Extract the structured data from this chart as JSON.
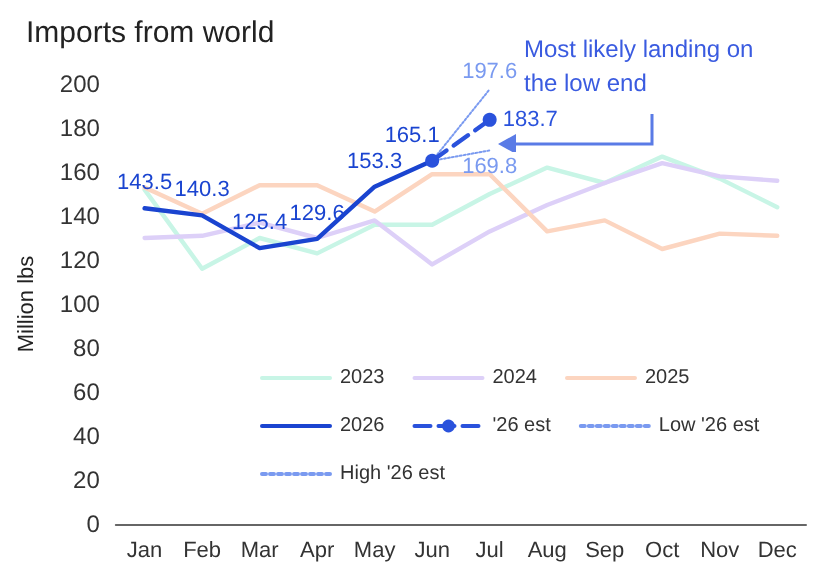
{
  "chart_data": {
    "type": "line",
    "title": "Imports from world",
    "ylabel": "Million lbs",
    "categories": [
      "Jan",
      "Feb",
      "Mar",
      "Apr",
      "May",
      "Jun",
      "Jul",
      "Aug",
      "Sep",
      "Oct",
      "Nov",
      "Dec"
    ],
    "ylim": [
      0,
      200
    ],
    "yticks": [
      0,
      20,
      40,
      60,
      80,
      100,
      120,
      140,
      160,
      180,
      200
    ],
    "grid": false,
    "legend": "bottom",
    "annotations": [
      "Most likely landing on the low end"
    ],
    "series": [
      {
        "name": "2023",
        "color": "#c8f5e6",
        "line_style": "solid",
        "marker": "none",
        "values": [
          152,
          116,
          130,
          123,
          136,
          136,
          150,
          162,
          155,
          167,
          157,
          144
        ]
      },
      {
        "name": "2024",
        "color": "#ddd0f8",
        "line_style": "solid",
        "marker": "none",
        "values": [
          130,
          131,
          137,
          130,
          138,
          118,
          133,
          145,
          155,
          164,
          158,
          156
        ]
      },
      {
        "name": "2025",
        "color": "#fcd5c0",
        "line_style": "solid",
        "marker": "none",
        "values": [
          153,
          141,
          154,
          154,
          142,
          159,
          159,
          133,
          138,
          125,
          132,
          131
        ]
      },
      {
        "name": "2026",
        "color": "#1a44d0",
        "line_style": "solid",
        "marker": "none",
        "values": [
          143.5,
          140.3,
          125.4,
          129.6,
          153.3,
          165.1,
          null,
          null,
          null,
          null,
          null,
          null
        ],
        "value_labels": [
          "143.5",
          "140.3",
          "125.4",
          "129.6",
          "153.3",
          "165.1",
          null,
          null,
          null,
          null,
          null,
          null
        ]
      },
      {
        "name": "'26 est",
        "color": "#2a52dc",
        "line_style": "dashed",
        "marker": "circle",
        "values": [
          null,
          null,
          null,
          null,
          null,
          165.1,
          183.7,
          null,
          null,
          null,
          null,
          null
        ],
        "value_labels": [
          null,
          null,
          null,
          null,
          null,
          null,
          "183.7",
          null,
          null,
          null,
          null,
          null
        ]
      },
      {
        "name": "Low '26 est",
        "color": "#7a9af0",
        "line_style": "dotted",
        "marker": "none",
        "values": [
          null,
          null,
          null,
          null,
          null,
          165.1,
          169.8,
          null,
          null,
          null,
          null,
          null
        ],
        "value_labels": [
          null,
          null,
          null,
          null,
          null,
          null,
          "169.8",
          null,
          null,
          null,
          null,
          null
        ]
      },
      {
        "name": "High '26 est",
        "color": "#7a9af0",
        "line_style": "dotted",
        "marker": "none",
        "values": [
          null,
          null,
          null,
          null,
          null,
          165.1,
          197.6,
          null,
          null,
          null,
          null,
          null
        ],
        "value_labels": [
          null,
          null,
          null,
          null,
          null,
          null,
          "197.6",
          null,
          null,
          null,
          null,
          null
        ]
      }
    ]
  }
}
